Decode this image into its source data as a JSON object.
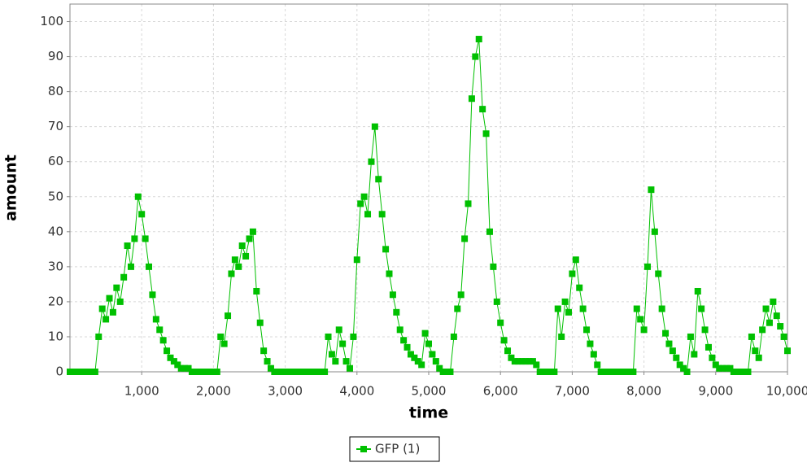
{
  "chart_data": {
    "type": "line",
    "x_label": "time",
    "y_label": "amount",
    "xlim": [
      0,
      10000
    ],
    "ylim": [
      0,
      105
    ],
    "xticks": [
      {
        "value": 1000,
        "label": "1,000"
      },
      {
        "value": 2000,
        "label": "2,000"
      },
      {
        "value": 3000,
        "label": "3,000"
      },
      {
        "value": 4000,
        "label": "4,000"
      },
      {
        "value": 5000,
        "label": "5,000"
      },
      {
        "value": 6000,
        "label": "6,000"
      },
      {
        "value": 7000,
        "label": "7,000"
      },
      {
        "value": 8000,
        "label": "8,000"
      },
      {
        "value": 9000,
        "label": "9,000"
      },
      {
        "value": 10000,
        "label": "10,000"
      }
    ],
    "yticks": [
      0,
      10,
      20,
      30,
      40,
      50,
      60,
      70,
      80,
      90,
      100
    ],
    "grid": true,
    "legend": "bottom",
    "x": [
      0,
      50,
      100,
      150,
      200,
      250,
      300,
      350,
      400,
      450,
      500,
      550,
      600,
      650,
      700,
      750,
      800,
      850,
      900,
      950,
      1000,
      1050,
      1100,
      1150,
      1200,
      1250,
      1300,
      1350,
      1400,
      1450,
      1500,
      1550,
      1600,
      1650,
      1700,
      1750,
      1800,
      1850,
      1900,
      1950,
      2000,
      2050,
      2100,
      2150,
      2200,
      2250,
      2300,
      2350,
      2400,
      2450,
      2500,
      2550,
      2600,
      2650,
      2700,
      2750,
      2800,
      2850,
      2900,
      2950,
      3000,
      3050,
      3100,
      3150,
      3200,
      3250,
      3300,
      3350,
      3400,
      3450,
      3500,
      3550,
      3600,
      3650,
      3700,
      3750,
      3800,
      3850,
      3900,
      3950,
      4000,
      4050,
      4100,
      4150,
      4200,
      4250,
      4300,
      4350,
      4400,
      4450,
      4500,
      4550,
      4600,
      4650,
      4700,
      4750,
      4800,
      4850,
      4900,
      4950,
      5000,
      5050,
      5100,
      5150,
      5200,
      5250,
      5300,
      5350,
      5400,
      5450,
      5500,
      5550,
      5600,
      5650,
      5700,
      5750,
      5800,
      5850,
      5900,
      5950,
      6000,
      6050,
      6100,
      6150,
      6200,
      6250,
      6300,
      6350,
      6400,
      6450,
      6500,
      6550,
      6600,
      6650,
      6700,
      6750,
      6800,
      6850,
      6900,
      6950,
      7000,
      7050,
      7100,
      7150,
      7200,
      7250,
      7300,
      7350,
      7400,
      7450,
      7500,
      7550,
      7600,
      7650,
      7700,
      7750,
      7800,
      7850,
      7900,
      7950,
      8000,
      8050,
      8100,
      8150,
      8200,
      8250,
      8300,
      8350,
      8400,
      8450,
      8500,
      8550,
      8600,
      8650,
      8700,
      8750,
      8800,
      8850,
      8900,
      8950,
      9000,
      9050,
      9100,
      9150,
      9200,
      9250,
      9300,
      9350,
      9400,
      9450,
      9500,
      9550,
      9600,
      9650,
      9700,
      9750,
      9800,
      9850,
      9900,
      9950,
      10000
    ],
    "series": [
      {
        "name": "GFP (1)",
        "color": "#00c000",
        "values": [
          0,
          0,
          0,
          0,
          0,
          0,
          0,
          0,
          10,
          18,
          15,
          21,
          17,
          24,
          20,
          27,
          36,
          30,
          38,
          50,
          45,
          38,
          30,
          22,
          15,
          12,
          9,
          6,
          4,
          3,
          2,
          1,
          1,
          1,
          0,
          0,
          0,
          0,
          0,
          0,
          0,
          0,
          10,
          8,
          16,
          28,
          32,
          30,
          36,
          33,
          38,
          40,
          23,
          14,
          6,
          3,
          1,
          0,
          0,
          0,
          0,
          0,
          0,
          0,
          0,
          0,
          0,
          0,
          0,
          0,
          0,
          0,
          10,
          5,
          3,
          12,
          8,
          3,
          1,
          10,
          32,
          48,
          50,
          45,
          60,
          70,
          55,
          45,
          35,
          28,
          22,
          17,
          12,
          9,
          7,
          5,
          4,
          3,
          2,
          11,
          8,
          5,
          3,
          1,
          0,
          0,
          0,
          10,
          18,
          22,
          38,
          48,
          78,
          90,
          95,
          75,
          68,
          40,
          30,
          20,
          14,
          9,
          6,
          4,
          3,
          3,
          3,
          3,
          3,
          3,
          2,
          0,
          0,
          0,
          0,
          0,
          18,
          10,
          20,
          17,
          28,
          32,
          24,
          18,
          12,
          8,
          5,
          2,
          0,
          0,
          0,
          0,
          0,
          0,
          0,
          0,
          0,
          0,
          18,
          15,
          12,
          30,
          52,
          40,
          28,
          18,
          11,
          8,
          6,
          4,
          2,
          1,
          0,
          10,
          5,
          23,
          18,
          12,
          7,
          4,
          2,
          1,
          1,
          1,
          1,
          0,
          0,
          0,
          0,
          0,
          10,
          6,
          4,
          12,
          18,
          14,
          20,
          16,
          13,
          10,
          6
        ]
      }
    ]
  }
}
